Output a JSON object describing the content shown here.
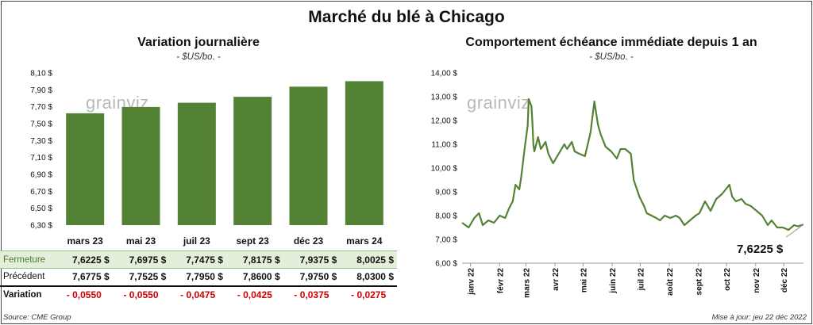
{
  "main_title": "Marché du blé à Chicago",
  "left_chart": {
    "title": "Variation  journalière",
    "subtitle": "- $US/bo. -",
    "logo": "grainviz",
    "y_ticks": [
      "8,10 $",
      "7,90 $",
      "7,70 $",
      "7,50 $",
      "7,30 $",
      "7,10 $",
      "6,90 $",
      "6,70 $",
      "6,50 $",
      "6,30 $"
    ]
  },
  "right_chart": {
    "title": "Comportement  échéance immédiate depuis 1 an",
    "subtitle": "- $US/bo. -",
    "logo": "grainviz",
    "y_ticks": [
      "14,00 $",
      "13,00 $",
      "12,00 $",
      "11,00 $",
      "10,00 $",
      "9,00 $",
      "8,00 $",
      "7,00 $",
      "6,00 $"
    ],
    "x_ticks": [
      "janv 22",
      "févr 22",
      "mars 22",
      "avr 22",
      "mai 22",
      "juin 22",
      "juil 22",
      "août 22",
      "sept 22",
      "oct 22",
      "nov 22",
      "déc 22"
    ],
    "last_value_label": "7,6225 $"
  },
  "table": {
    "row_labels": {
      "close": "Fermeture",
      "prev": "Précédent",
      "change": "Variation"
    },
    "close": [
      "7,6225  $",
      "7,6975  $",
      "7,7475  $",
      "7,8175  $",
      "7,9375  $",
      "8,0025  $"
    ],
    "prev": [
      "7,6775  $",
      "7,7525  $",
      "7,7950  $",
      "7,8600  $",
      "7,9750  $",
      "8,0300  $"
    ],
    "change": [
      "- 0,0550",
      "- 0,0550",
      "- 0,0475",
      "- 0,0425",
      "- 0,0375",
      "- 0,0275"
    ]
  },
  "footer": {
    "source": "Source: CME Group",
    "updated": "Mise à jour: jeu 22 déc 2022"
  },
  "colors": {
    "bar": "#548235",
    "line": "#548235",
    "negative": "#d00000"
  },
  "chart_data": [
    {
      "type": "bar",
      "title": "Variation  journalière",
      "ylabel": "$US/bo.",
      "categories": [
        "mars 23",
        "mai 23",
        "juil 23",
        "sept 23",
        "déc 23",
        "mars 24"
      ],
      "values": [
        7.6225,
        7.6975,
        7.7475,
        7.8175,
        7.9375,
        8.0025
      ],
      "ylim": [
        6.3,
        8.1
      ],
      "grid": false,
      "legend": "none"
    },
    {
      "type": "line",
      "title": "Comportement  échéance immédiate depuis 1 an",
      "ylabel": "$US/bo.",
      "ylim": [
        6.0,
        14.0
      ],
      "grid": false,
      "legend": "none",
      "x": [
        "2021-12-23",
        "2021-12-30",
        "2022-01-05",
        "2022-01-10",
        "2022-01-14",
        "2022-01-20",
        "2022-01-26",
        "2022-02-01",
        "2022-02-07",
        "2022-02-11",
        "2022-02-15",
        "2022-02-18",
        "2022-02-22",
        "2022-02-24",
        "2022-02-28",
        "2022-03-03",
        "2022-03-04",
        "2022-03-07",
        "2022-03-08",
        "2022-03-09",
        "2022-03-10",
        "2022-03-14",
        "2022-03-17",
        "2022-03-22",
        "2022-03-25",
        "2022-03-30",
        "2022-04-05",
        "2022-04-11",
        "2022-04-14",
        "2022-04-19",
        "2022-04-22",
        "2022-04-27",
        "2022-05-03",
        "2022-05-09",
        "2022-05-13",
        "2022-05-17",
        "2022-05-20",
        "2022-05-25",
        "2022-05-31",
        "2022-06-06",
        "2022-06-10",
        "2022-06-15",
        "2022-06-21",
        "2022-06-24",
        "2022-06-30",
        "2022-07-05",
        "2022-07-08",
        "2022-07-13",
        "2022-07-18",
        "2022-07-22",
        "2022-07-27",
        "2022-08-02",
        "2022-08-08",
        "2022-08-12",
        "2022-08-17",
        "2022-08-23",
        "2022-08-29",
        "2022-09-02",
        "2022-09-08",
        "2022-09-14",
        "2022-09-20",
        "2022-09-26",
        "2022-09-30",
        "2022-10-04",
        "2022-10-07",
        "2022-10-11",
        "2022-10-17",
        "2022-10-21",
        "2022-10-27",
        "2022-11-02",
        "2022-11-08",
        "2022-11-14",
        "2022-11-18",
        "2022-11-24",
        "2022-11-30",
        "2022-12-06",
        "2022-12-12",
        "2022-12-16",
        "2022-12-22"
      ],
      "series": [
        {
          "values": [
            7.7,
            7.5,
            7.9,
            8.1,
            7.6,
            7.8,
            7.7,
            8.0,
            7.9,
            8.3,
            8.6,
            9.3,
            9.1,
            9.6,
            10.9,
            11.8,
            12.9,
            12.6,
            11.9,
            11.0,
            10.7,
            11.3,
            10.8,
            11.1,
            10.6,
            10.2,
            10.6,
            11.0,
            10.8,
            11.1,
            10.7,
            10.6,
            10.5,
            11.5,
            12.8,
            11.8,
            11.4,
            10.9,
            10.7,
            10.4,
            10.8,
            10.8,
            10.6,
            9.5,
            8.8,
            8.4,
            8.1,
            8.0,
            7.9,
            7.8,
            8.0,
            7.9,
            8.0,
            7.9,
            7.6,
            7.8,
            8.0,
            8.1,
            8.6,
            8.2,
            8.7,
            8.9,
            9.1,
            9.3,
            8.8,
            8.6,
            8.7,
            8.5,
            8.4,
            8.2,
            8.0,
            7.6,
            7.8,
            7.5,
            7.5,
            7.4,
            7.6,
            7.55,
            7.6225
          ]
        }
      ]
    }
  ]
}
